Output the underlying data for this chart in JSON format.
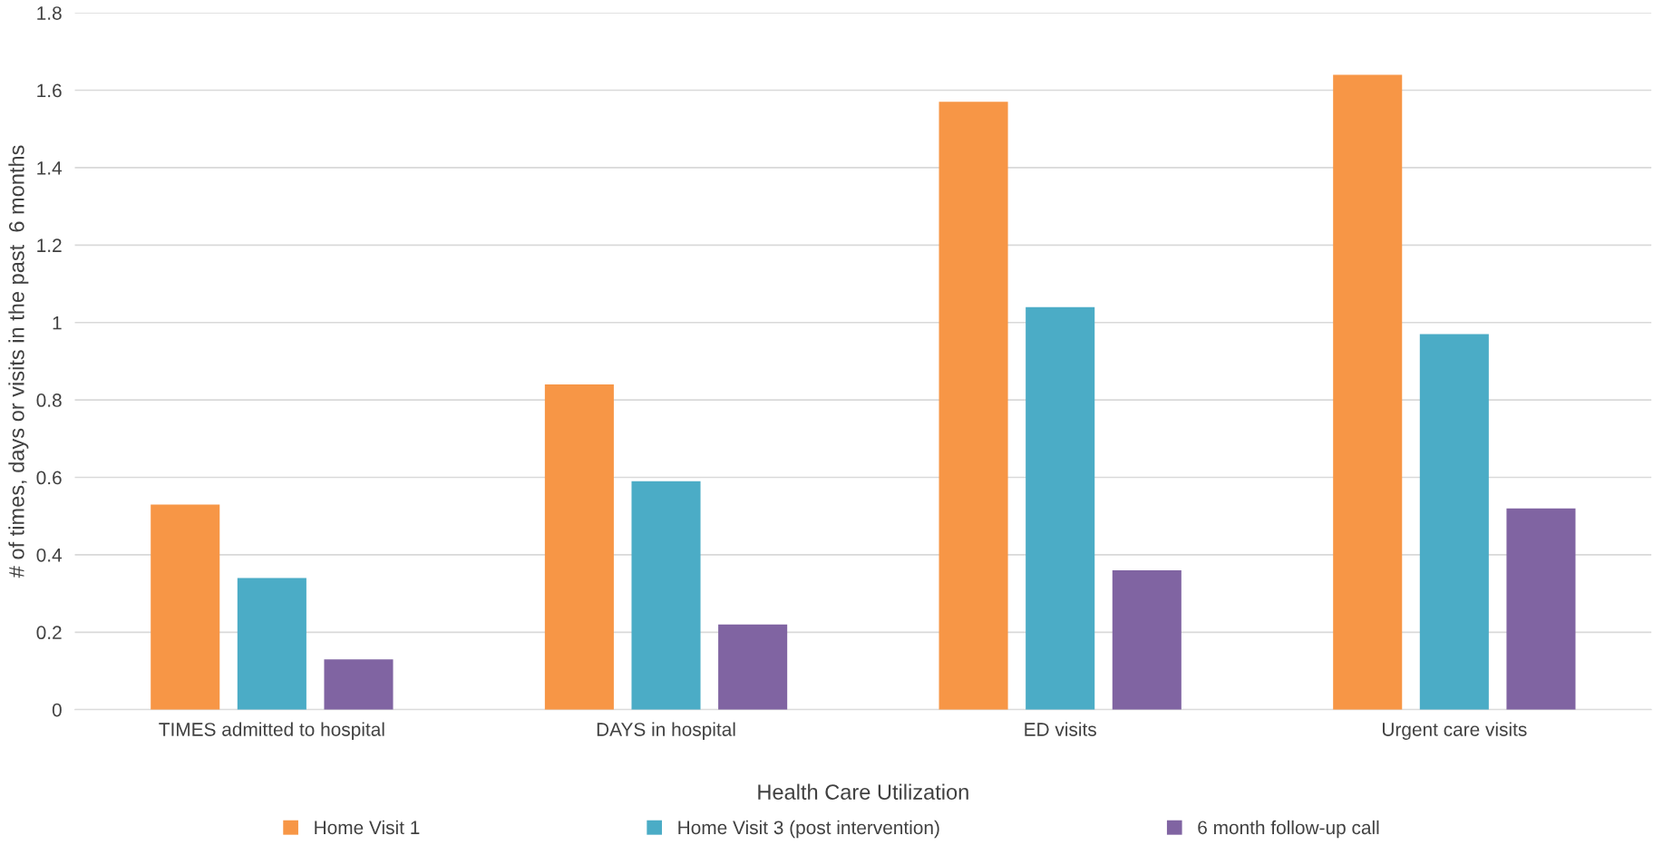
{
  "chart_data": {
    "type": "bar",
    "xlabel": "Health Care Utilization",
    "ylabel": "# of times, days or visits in the past  6 months",
    "categories": [
      "TIMES admitted to hospital",
      "DAYS in hospital",
      "ED visits",
      "Urgent care visits"
    ],
    "series": [
      {
        "name": "Home Visit 1",
        "color": "#f79646",
        "values": [
          0.53,
          0.84,
          1.57,
          1.64
        ]
      },
      {
        "name": "Home Visit 3 (post intervention)",
        "color": "#4bacc6",
        "values": [
          0.34,
          0.59,
          1.04,
          0.97
        ]
      },
      {
        "name": "6 month follow-up call",
        "color": "#8064a2",
        "values": [
          0.13,
          0.22,
          0.36,
          0.52
        ]
      }
    ],
    "ylim": [
      0,
      1.8
    ],
    "yticks": [
      0,
      0.2,
      0.4,
      0.6,
      0.8,
      1,
      1.2,
      1.4,
      1.6,
      1.8
    ],
    "grid": "y",
    "legend": "bottom"
  }
}
